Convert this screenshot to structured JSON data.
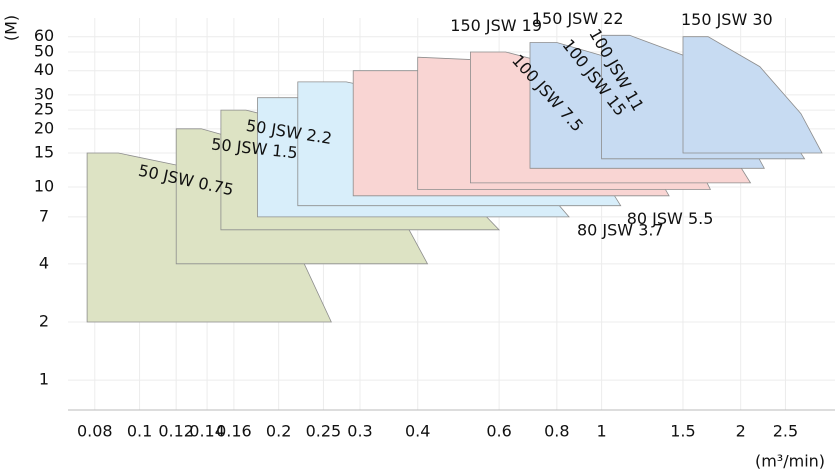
{
  "chart_data": {
    "type": "area",
    "y_label": "(M)",
    "x_label": "(m³/min)",
    "xscale": "log",
    "yscale": "log",
    "grid": true,
    "xlim": [
      0.07,
      3.2
    ],
    "ylim": [
      0.7,
      75
    ],
    "xticks": [
      0.08,
      0.1,
      0.12,
      0.14,
      0.16,
      0.2,
      0.25,
      0.3,
      0.4,
      0.6,
      0.8,
      1,
      1.5,
      2,
      2.5
    ],
    "yticks": [
      1,
      2,
      4,
      7,
      10,
      15,
      20,
      25,
      30,
      40,
      50,
      60
    ],
    "series": [
      {
        "name": "50 JSW 0.75",
        "color": "#dde3c4",
        "x": [
          0.077,
          0.077,
          0.09,
          0.12,
          0.16,
          0.21,
          0.26
        ],
        "y": [
          2,
          15,
          15,
          13,
          9.5,
          6,
          2
        ]
      },
      {
        "name": "50 JSW 1.5",
        "color": "#dde3c4",
        "x": [
          0.12,
          0.12,
          0.136,
          0.19,
          0.27,
          0.37,
          0.42
        ],
        "y": [
          4,
          20,
          20,
          16,
          10,
          7,
          4
        ]
      },
      {
        "name": "50 JSW 2.2",
        "color": "#dde3c4",
        "x": [
          0.15,
          0.15,
          0.17,
          0.27,
          0.47,
          0.6
        ],
        "y": [
          6,
          25,
          25,
          19,
          11,
          6
        ]
      },
      {
        "name": "80 JSW 3.7",
        "color": "#d8eefa",
        "x": [
          0.18,
          0.18,
          0.22,
          0.47,
          0.7,
          0.85
        ],
        "y": [
          7,
          29,
          29,
          20,
          12,
          7
        ]
      },
      {
        "name": "80 JSW 5.5",
        "color": "#d8eefa",
        "x": [
          0.22,
          0.22,
          0.28,
          0.6,
          0.95,
          1.1
        ],
        "y": [
          8,
          35,
          35,
          24,
          14,
          8
        ]
      },
      {
        "name": "100 JSW 7.5",
        "color": "#f9d5d3",
        "x": [
          0.29,
          0.29,
          0.4,
          0.8,
          1.2,
          1.4
        ],
        "y": [
          9,
          40,
          40,
          27,
          17,
          9
        ]
      },
      {
        "name": "100 JSW 15",
        "color": "#f9d5d3",
        "x": [
          0.4,
          0.4,
          0.6,
          1.0,
          1.5,
          1.72
        ],
        "y": [
          9.7,
          47,
          45,
          31,
          18.5,
          9.7
        ]
      },
      {
        "name": "100 JSW 11",
        "color": "#f9d5d3",
        "x": [
          0.52,
          0.52,
          0.62,
          1.15,
          1.8,
          2.1
        ],
        "y": [
          10.5,
          50,
          50,
          34,
          19,
          10.5
        ]
      },
      {
        "name": "150 JSW 19",
        "color": "#c7dbf2",
        "x": [
          0.7,
          0.7,
          0.8,
          1.4,
          2.0,
          2.25
        ],
        "y": [
          12.5,
          56,
          56,
          38,
          21,
          12.5
        ]
      },
      {
        "name": "150 JSW 22",
        "color": "#c7dbf2",
        "x": [
          1.0,
          1.0,
          1.15,
          1.75,
          2.4,
          2.75
        ],
        "y": [
          14,
          61,
          61,
          42,
          23,
          14
        ]
      },
      {
        "name": "150 JSW 30",
        "color": "#c7dbf2",
        "x": [
          1.5,
          1.5,
          1.7,
          2.2,
          2.7,
          3.0
        ],
        "y": [
          15,
          60,
          60,
          42,
          24,
          15
        ]
      }
    ]
  }
}
